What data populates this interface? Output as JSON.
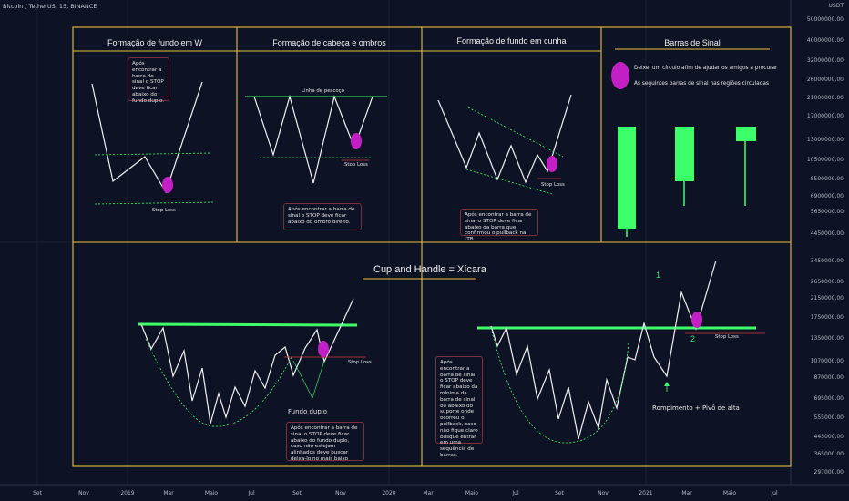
{
  "header": {
    "symbol_line": "Bitcoin / TetherUS, 15, BINANCE"
  },
  "yaxis": {
    "currency_top": "USDT",
    "ticks": [
      "50000000.00",
      "40000000.00",
      "32000000.00",
      "26000000.00",
      "21000000.00",
      "17000000.00",
      "13000000.00",
      "10500000.00",
      "8500000.00",
      "6900000.00",
      "5650000.00",
      "4450000.00",
      "3450000.00",
      "2650000.00",
      "2150000.00",
      "1750000.00",
      "1350000.00",
      "1070000.00",
      "870000.00",
      "695000.00",
      "555000.00",
      "445000.00",
      "365000.00",
      "297000.00"
    ]
  },
  "xaxis": {
    "ticks": [
      "Set",
      "Nov",
      "2019",
      "Mar",
      "Maio",
      "Jul",
      "Set",
      "Nov",
      "2020",
      "Mar",
      "Maio",
      "Jul",
      "Set",
      "Nov",
      "2021",
      "Mar",
      "Maio",
      "Jul"
    ]
  },
  "panels": {
    "w": {
      "title": "Formação de fundo em W",
      "note": "Após encontrar a barra de sinal o STOP deve ficar abaixo do fundo duplo.",
      "stop": "Stop Loss"
    },
    "hs": {
      "title": "Formação de cabeça e ombros",
      "neck": "Linha de pescoço",
      "stop": "Stop Loss",
      "note": "Após encontrar a barra de sinal o STOP deve ficar abaixo do ombro direito."
    },
    "wedge": {
      "title": "Formação de fundo em cunha",
      "stop": "Stop Loss",
      "note": "Após encontrar a barra de sinal o STOP deve ficar abaixo da barra que confirmou o pullback na LTB"
    },
    "signal": {
      "title": "Barras de Sinal",
      "line1": "Deixei um círculo afim de ajudar os amigos a procurar",
      "line2": "As seguintes barras de sinal nas regiões circuladas"
    },
    "cup": {
      "title": "Cup and Handle = Xícara",
      "left_stop": "Stop Loss",
      "fundo_duplo": "Fundo duplo",
      "left_note": "Após encontrar a barra de sinal o STOP deve ficar abaixo do fundo duplo, caso não estejam alinhados deve buscar deixa-lo no mais baixo",
      "right_note": "Após encontrar a barra de sinal o STOP deve ficar abaixo da mínima da barra de sinal ou abaixo do suporte onde ocorreu o pullback, caso não fique claro busque entrar em uma sequência de barras.",
      "right_stop": "Stop Loss",
      "label1": "1",
      "label2": "2",
      "rompimento": "Rompimento + Pivô de alta"
    }
  },
  "colors": {
    "background": "#0d1224",
    "frame": "#e6c23a",
    "green": "#3dff6a",
    "magenta": "#c21fc4",
    "red": "#d23a3a"
  }
}
